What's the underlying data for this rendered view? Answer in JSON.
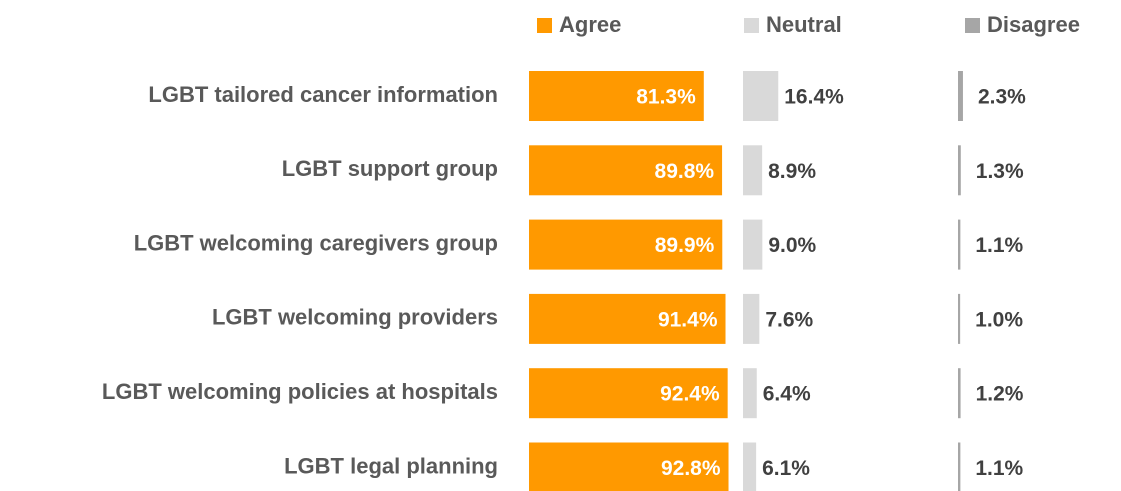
{
  "chart_data": {
    "type": "bar",
    "orientation": "horizontal",
    "categories": [
      "LGBT tailored cancer information",
      "LGBT support group",
      "LGBT welcoming caregivers group",
      "LGBT welcoming providers",
      "LGBT welcoming policies at hospitals",
      "LGBT legal planning"
    ],
    "series": [
      {
        "name": "Agree",
        "color": "#ff9900",
        "values": [
          81.3,
          89.8,
          89.9,
          91.4,
          92.4,
          92.8
        ],
        "value_labels": [
          "81.3%",
          "89.8%",
          "89.9%",
          "91.4%",
          "92.4%",
          "92.8%"
        ]
      },
      {
        "name": "Neutral",
        "color": "#d9d9d9",
        "values": [
          16.4,
          8.9,
          9.0,
          7.6,
          6.4,
          6.1
        ],
        "value_labels": [
          "16.4%",
          "8.9%",
          "9.0%",
          "7.6%",
          "6.4%",
          "6.1%"
        ]
      },
      {
        "name": "Disagree",
        "color": "#a6a6a6",
        "values": [
          2.3,
          1.3,
          1.1,
          1.0,
          1.2,
          1.1
        ],
        "value_labels": [
          "2.3%",
          "1.3%",
          "1.1%",
          "1.0%",
          "1.2%",
          "1.1%"
        ]
      }
    ],
    "xlim": [
      0,
      100
    ]
  }
}
